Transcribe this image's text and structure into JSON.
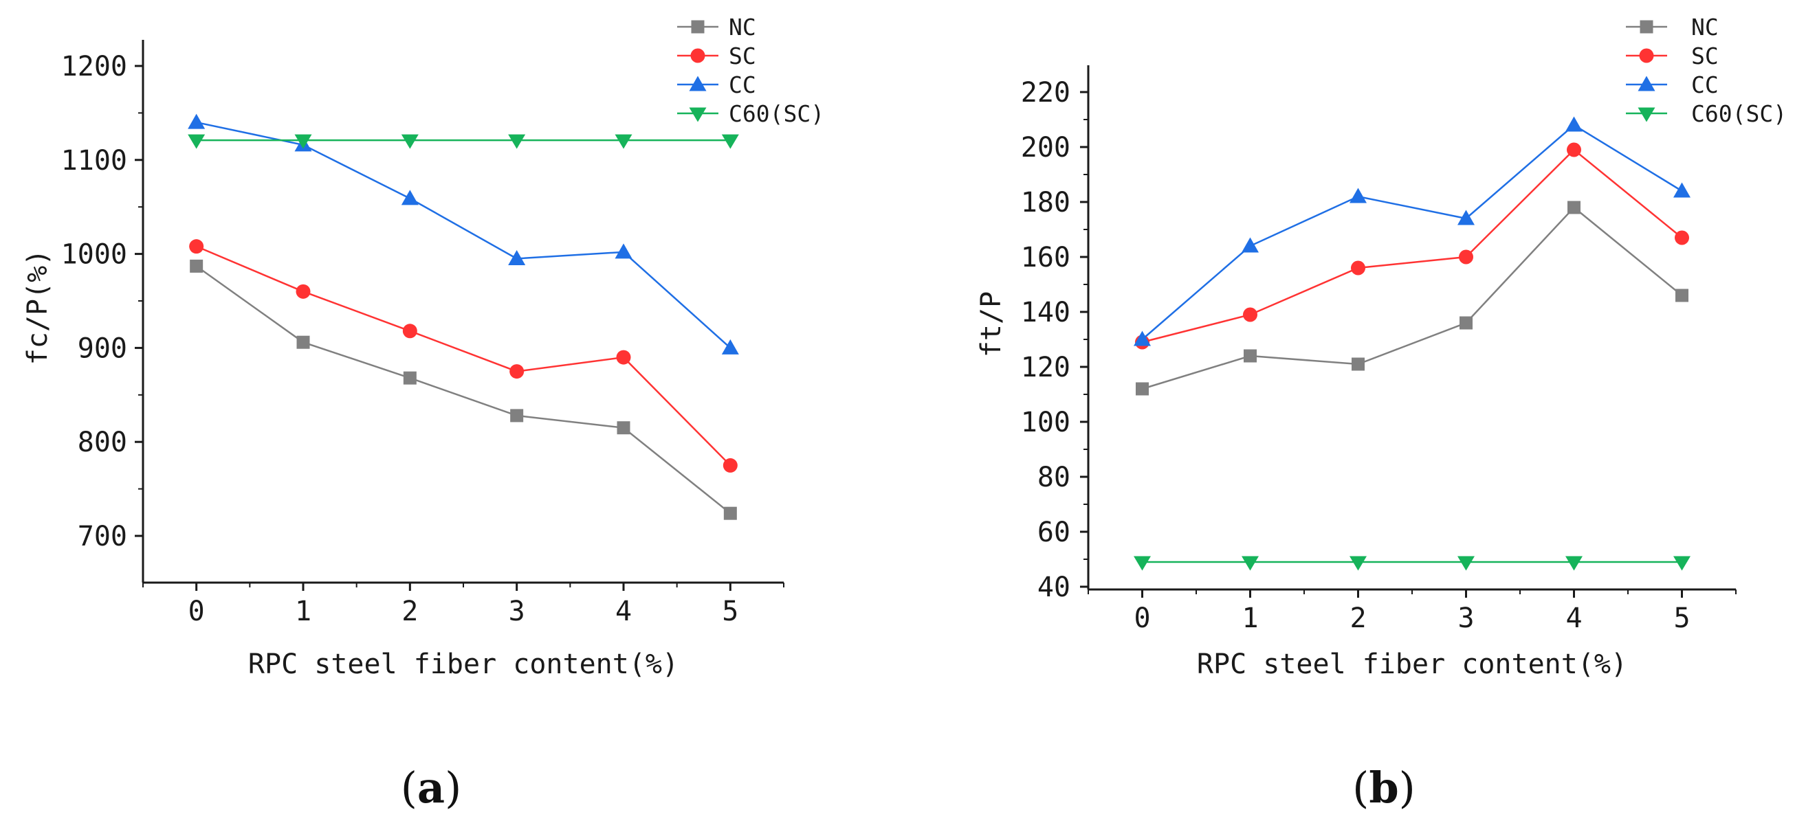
{
  "figure": {
    "caption_a": {
      "open": "(",
      "letter": "a",
      "close": ")"
    },
    "caption_b": {
      "open": "(",
      "letter": "b",
      "close": ")"
    }
  },
  "chart_data": [
    {
      "type": "line",
      "panel": "a",
      "title": "",
      "xlabel": "RPC steel fiber content(%)",
      "ylabel": "fc/P(%)",
      "x": [
        0,
        1,
        2,
        3,
        4,
        5
      ],
      "x_ticks": [
        0,
        1,
        2,
        3,
        4,
        5
      ],
      "xlim": [
        -0.5,
        5.5
      ],
      "y_ticks": [
        700,
        800,
        900,
        1000,
        1100,
        1200
      ],
      "ylim": [
        650,
        1200
      ],
      "grid": false,
      "legend": "top-right",
      "series": [
        {
          "name": "NC",
          "color": "#808080",
          "marker": "square",
          "values": [
            987,
            906,
            868,
            828,
            815,
            724
          ]
        },
        {
          "name": "SC",
          "color": "#ff3333",
          "marker": "circle",
          "values": [
            1008,
            960,
            918,
            875,
            890,
            775
          ]
        },
        {
          "name": "CC",
          "color": "#1f6fe5",
          "marker": "triangle-up",
          "values": [
            1140,
            1116,
            1059,
            995,
            1002,
            900
          ]
        },
        {
          "name": "C60(SC)",
          "color": "#16b35a",
          "marker": "triangle-down",
          "values": [
            1121,
            1121,
            1121,
            1121,
            1121,
            1121
          ]
        }
      ]
    },
    {
      "type": "line",
      "panel": "b",
      "title": "",
      "xlabel": "RPC steel fiber content(%)",
      "ylabel": "ft/P",
      "x": [
        0,
        1,
        2,
        3,
        4,
        5
      ],
      "x_ticks": [
        0,
        1,
        2,
        3,
        4,
        5
      ],
      "xlim": [
        -0.5,
        5.5
      ],
      "y_ticks": [
        40,
        60,
        80,
        100,
        120,
        140,
        160,
        180,
        200,
        220
      ],
      "ylim": [
        30,
        230
      ],
      "grid": false,
      "legend": "top-right",
      "series": [
        {
          "name": "NC",
          "color": "#808080",
          "marker": "square",
          "values": [
            112,
            124,
            121,
            136,
            178,
            146
          ]
        },
        {
          "name": "SC",
          "color": "#ff3333",
          "marker": "circle",
          "values": [
            129,
            139,
            156,
            160,
            199,
            167
          ]
        },
        {
          "name": "CC",
          "color": "#1f6fe5",
          "marker": "triangle-up",
          "values": [
            130,
            164,
            182,
            174,
            208,
            184
          ]
        },
        {
          "name": "C60(SC)",
          "color": "#16b35a",
          "marker": "triangle-down",
          "values": [
            49,
            49,
            49,
            49,
            49,
            49
          ]
        }
      ]
    }
  ]
}
